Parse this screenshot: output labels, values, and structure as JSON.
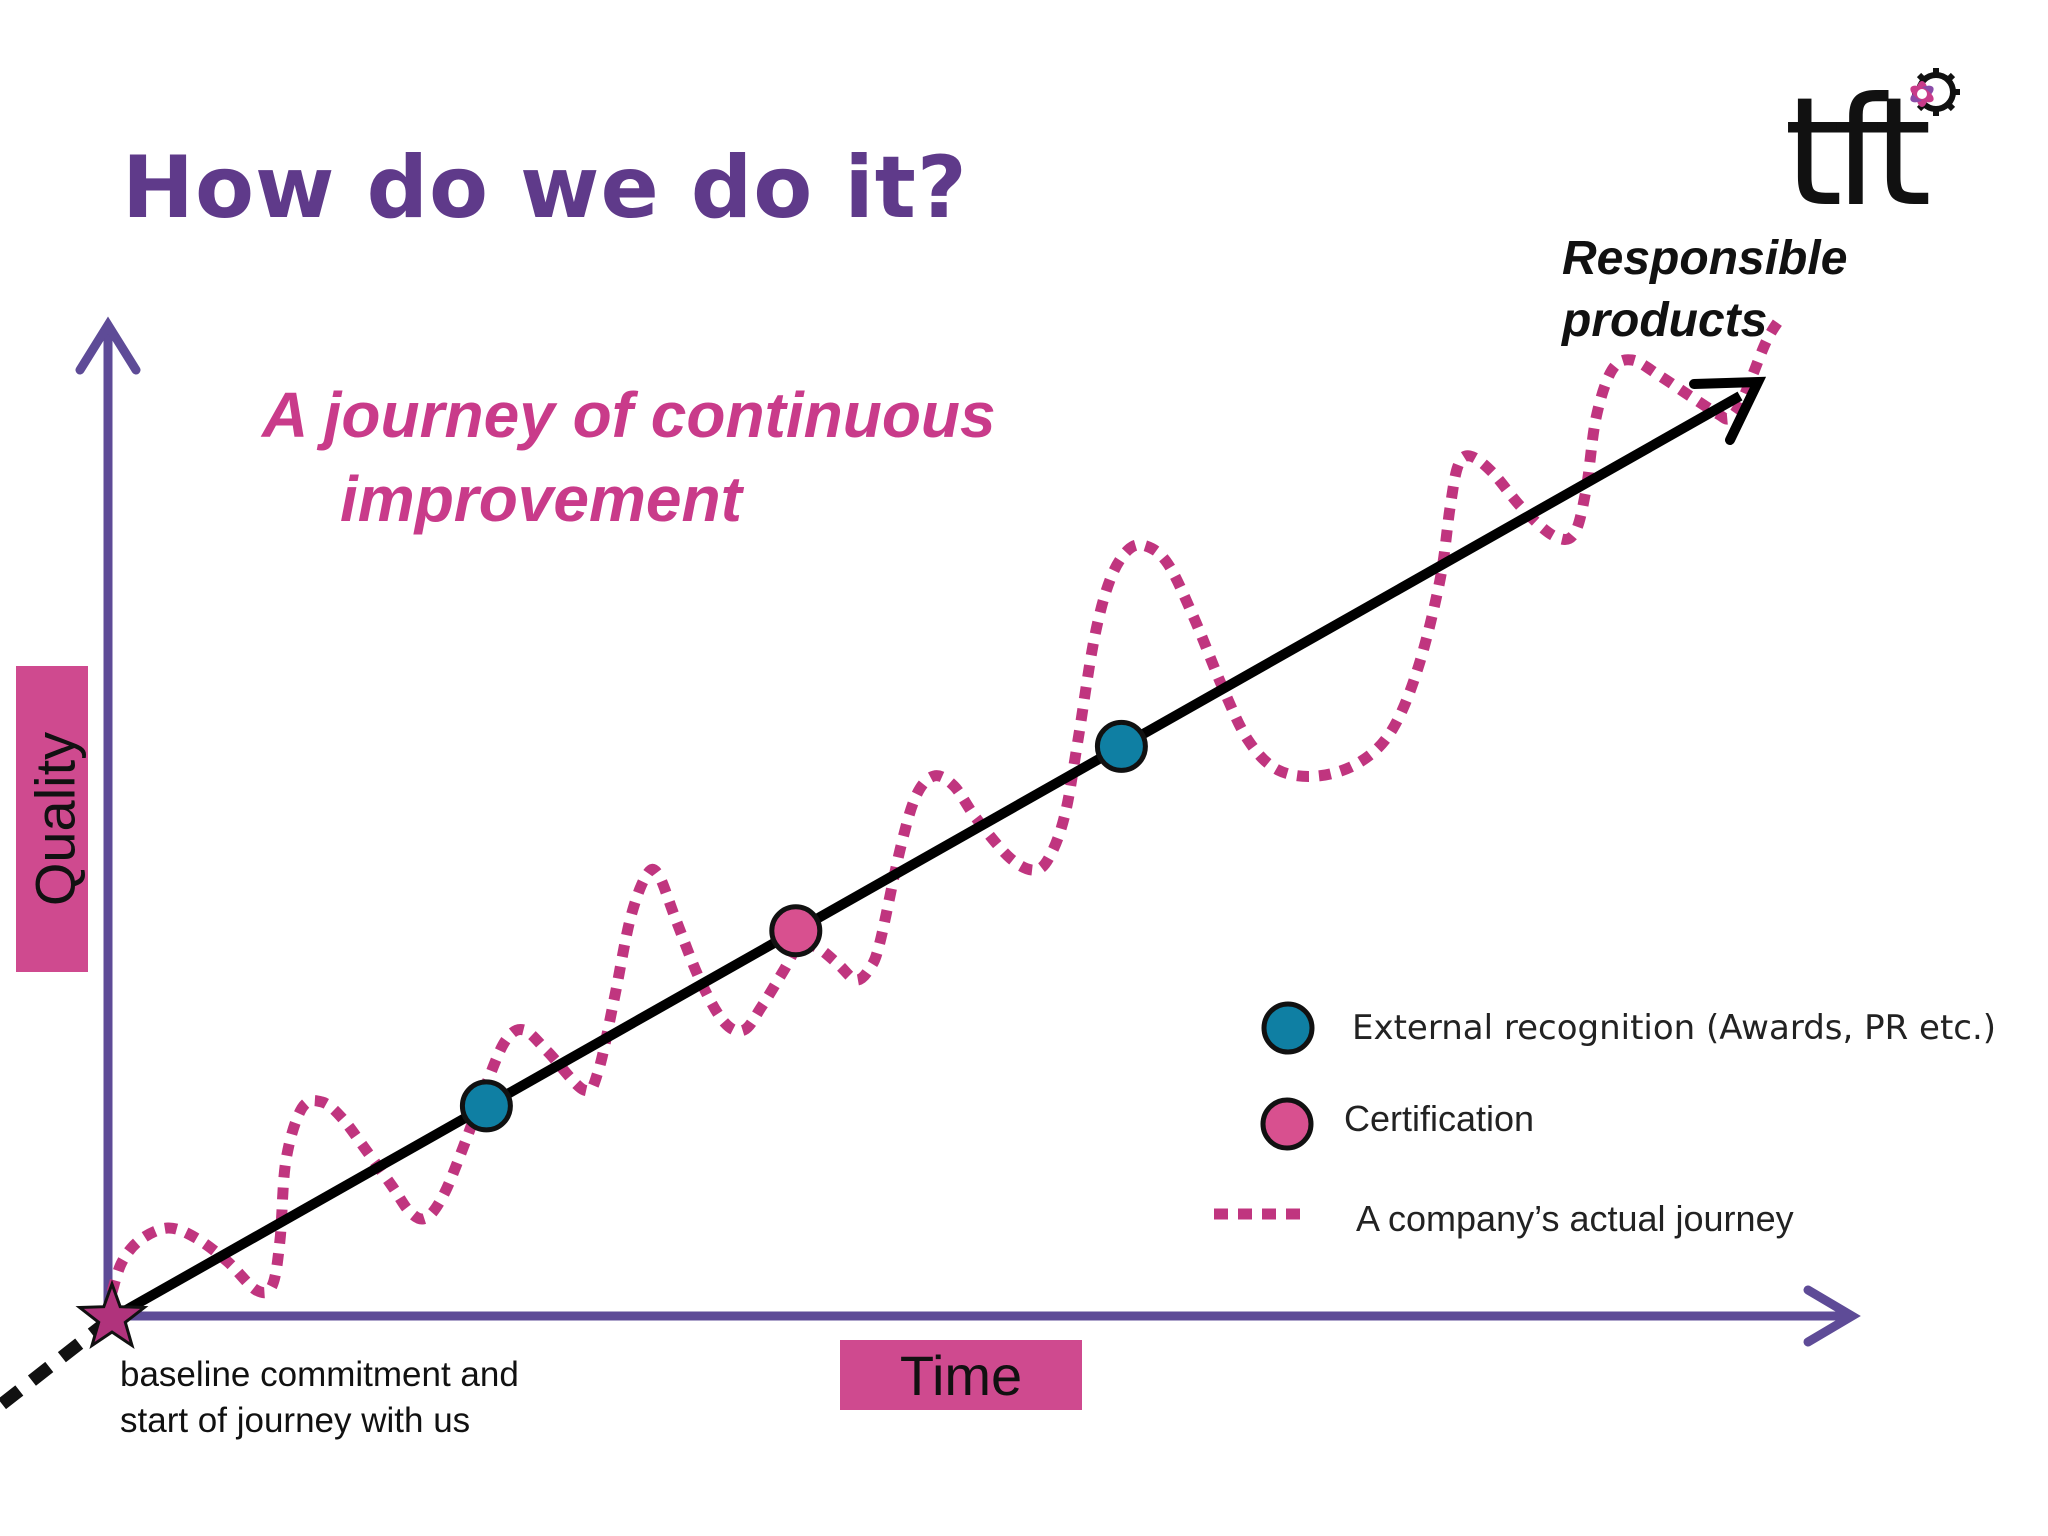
{
  "title": "How do we do it?",
  "subtitle": {
    "line1": "A journey of continuous",
    "line2": "improvement"
  },
  "goal": {
    "line1": "Responsible",
    "line2": "products"
  },
  "logo": {
    "text": "tft"
  },
  "axes": {
    "y_label": "Quality",
    "x_label": "Time"
  },
  "baseline_note": {
    "line1": "baseline commitment and",
    "line2": "start of journey with us"
  },
  "legend": [
    {
      "marker": "blue-circle",
      "label": "External recognition (Awards, PR etc.)"
    },
    {
      "marker": "pink-circle",
      "label": "Certification"
    },
    {
      "marker": "dotted-line",
      "label": "A company’s actual journey"
    }
  ],
  "colors": {
    "title": "#5f3a8a",
    "subtitle": "#c93b8a",
    "axis": "#5e4b97",
    "label_box": "#cf4a8f",
    "journey_dots": "#c0357f",
    "recognition": "#0f7fa3",
    "certification": "#d8508f",
    "trend_line": "#000000"
  },
  "milestones": [
    {
      "type": "recognition",
      "t": 0.23
    },
    {
      "type": "certification",
      "t": 0.42
    },
    {
      "type": "recognition",
      "t": 0.62
    }
  ]
}
